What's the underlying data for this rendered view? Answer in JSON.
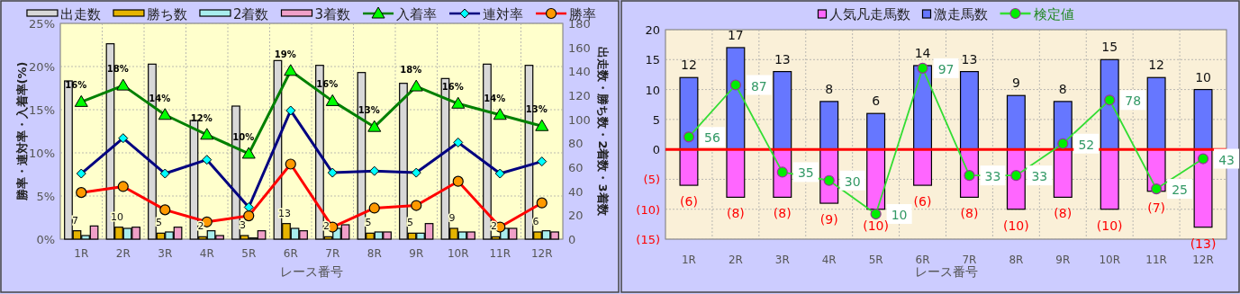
{
  "chart_data": [
    {
      "type": "bar",
      "xlabel": "レース番号",
      "ylabel": "勝率・連対率・入着率(%)",
      "y2label": "出走数・勝ち数・2着数・3着数",
      "categories": [
        "1R",
        "2R",
        "3R",
        "4R",
        "5R",
        "6R",
        "7R",
        "8R",
        "9R",
        "10R",
        "11R",
        "12R"
      ],
      "grid": true,
      "legend": "top",
      "ylim": [
        0,
        25
      ],
      "yticks": [
        {
          "value": 0,
          "label": "0%"
        },
        {
          "value": 5,
          "label": "5%"
        },
        {
          "value": 10,
          "label": "10%"
        },
        {
          "value": 15,
          "label": "15%"
        },
        {
          "value": 20,
          "label": "20%"
        },
        {
          "value": 25,
          "label": "25%"
        }
      ],
      "y2lim": [
        0,
        180
      ],
      "y2ticks": [
        0,
        20,
        40,
        60,
        80,
        100,
        120,
        140,
        160,
        180
      ],
      "series": [
        {
          "name": "出走数",
          "type": "bar",
          "axis": "y2",
          "color": "#d8d8d8",
          "values": [
            132,
            163,
            146,
            99,
            111,
            149,
            145,
            139,
            130,
            134,
            146,
            145
          ]
        },
        {
          "name": "勝ち数",
          "type": "bar",
          "axis": "y2",
          "color": "#e6b400",
          "values": [
            7,
            10,
            5,
            2,
            3,
            13,
            2,
            5,
            5,
            9,
            2,
            6
          ],
          "value_labels": [
            "7",
            "10",
            "5",
            "2",
            "3",
            "13",
            "2",
            "5",
            "5",
            "9",
            "2",
            "6"
          ]
        },
        {
          "name": "2着数",
          "type": "bar",
          "axis": "y2",
          "color": "#a8eeee",
          "values": [
            3,
            9,
            6,
            7,
            1,
            9,
            9,
            6,
            5,
            6,
            9,
            7
          ]
        },
        {
          "name": "3着数",
          "type": "bar",
          "axis": "y2",
          "color": "#f0a0c8",
          "values": [
            11,
            10,
            10,
            3,
            7,
            7,
            12,
            6,
            13,
            6,
            9,
            6
          ]
        },
        {
          "name": "入着率",
          "type": "line",
          "color": "#008000",
          "marker": "triangle",
          "colors": [
            "#00ff00",
            "#00ff00",
            "#00ff00",
            "#00ff00",
            "#00ff00",
            "#00ff00",
            "#00ff00",
            "#00ff00",
            "#00ff00",
            "#00ff00",
            "#00ff00",
            "#00ff00"
          ],
          "values": [
            15.9,
            17.8,
            14.4,
            12.1,
            9.9,
            19.5,
            16.0,
            13.0,
            17.7,
            15.7,
            14.4,
            13.1
          ],
          "value_labels": [
            "16%",
            "18%",
            "14%",
            "12%",
            "10%",
            "19%",
            "16%",
            "13%",
            "18%",
            "16%",
            "14%",
            "13%"
          ]
        },
        {
          "name": "連対率",
          "type": "line",
          "color": "#000080",
          "marker": "diamond",
          "colors": [
            "#00ffff",
            "#00ffff",
            "#00ffff",
            "#00ffff",
            "#00ffff",
            "#00ffff",
            "#00ffff",
            "#00ffff",
            "#00ffff",
            "#00ffff",
            "#00ffff",
            "#00ffff"
          ],
          "values": [
            7.6,
            11.7,
            7.6,
            9.2,
            3.7,
            14.9,
            7.7,
            7.9,
            7.7,
            11.2,
            7.6,
            9.0
          ]
        },
        {
          "name": "勝率",
          "type": "line",
          "color": "#ff0000",
          "marker": "circle",
          "colors": [
            "#ff9900",
            "#ff9900",
            "#ff9900",
            "#ff9900",
            "#ff9900",
            "#ff9900",
            "#ff9900",
            "#ff9900",
            "#ff9900",
            "#ff9900",
            "#ff9900",
            "#ff9900"
          ],
          "values": [
            5.4,
            6.1,
            3.4,
            2.0,
            2.7,
            8.7,
            1.4,
            3.6,
            3.9,
            6.7,
            1.4,
            4.2
          ]
        }
      ]
    },
    {
      "type": "bar",
      "xlabel": "レース番号",
      "categories": [
        "1R",
        "2R",
        "3R",
        "4R",
        "5R",
        "6R",
        "7R",
        "8R",
        "9R",
        "10R",
        "11R",
        "12R"
      ],
      "grid": true,
      "legend": "top",
      "stacked": true,
      "tick_labels": "xy",
      "ylim": [
        -15,
        20
      ],
      "yticks": [
        {
          "value": -15,
          "label": "(15)"
        },
        {
          "value": -10,
          "label": "(10)"
        },
        {
          "value": -5,
          "label": "(5)"
        },
        0,
        5,
        10,
        15,
        20
      ],
      "y2lim": [
        -5,
        120
      ],
      "ref_lines": [
        {
          "axis": "y",
          "value": 0,
          "color": "#ff0000"
        }
      ],
      "series": [
        {
          "name": "人気凡走馬数",
          "type": "bar",
          "color": "#ff66ff",
          "values": [
            -6,
            -8,
            -8,
            -9,
            -10,
            -6,
            -8,
            -10,
            -8,
            -10,
            -7,
            -13
          ],
          "value_labels": [
            "(6)",
            "(8)",
            "(8)",
            "(9)",
            "(10)",
            "(6)",
            "(8)",
            "(10)",
            "(8)",
            "(10)",
            "(7)",
            "(13)"
          ]
        },
        {
          "name": "激走馬数",
          "type": "bar",
          "color": "#6677ff",
          "values": [
            12,
            17,
            13,
            8,
            6,
            14,
            13,
            9,
            8,
            15,
            12,
            10
          ],
          "value_labels": [
            "12",
            "17",
            "13",
            "8",
            "6",
            "14",
            "13",
            "9",
            "8",
            "15",
            "12",
            "10"
          ]
        },
        {
          "name": "検定値",
          "type": "line",
          "axis": "y2",
          "color": "#33dd33",
          "marker": "circle",
          "colors": [
            "#00ee00",
            "#00ee00",
            "#00ee00",
            "#00ee00",
            "#00ee00",
            "#00ee00",
            "#00ee00",
            "#00ee00",
            "#00ee00",
            "#00ee00",
            "#00ee00",
            "#00ee00"
          ],
          "values": [
            56,
            87,
            35,
            30,
            10,
            97,
            33,
            33,
            52,
            78,
            25,
            43
          ],
          "value_labels": [
            "56",
            "87",
            "35",
            "30",
            "10",
            "97",
            "33",
            "33",
            "52",
            "78",
            "25",
            "43"
          ]
        }
      ]
    }
  ]
}
